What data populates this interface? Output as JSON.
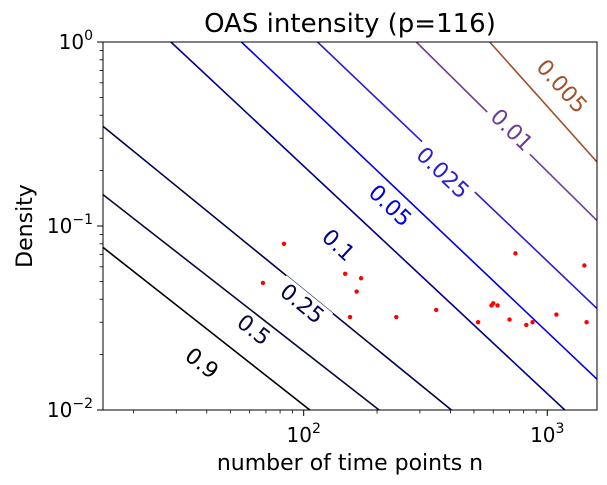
{
  "chart_data": {
    "type": "contour",
    "title": "OAS intensity (p=116)",
    "xlabel": "number of time points n",
    "ylabel": "Density",
    "xscale": "log",
    "yscale": "log",
    "xlim": [
      15,
      1600
    ],
    "ylim": [
      0.01,
      1
    ],
    "x_ticks": [
      {
        "value": 100,
        "base": "10",
        "exp": "2"
      },
      {
        "value": 1000,
        "base": "10",
        "exp": "3"
      }
    ],
    "y_ticks": [
      {
        "value": 0.01,
        "base": "10",
        "exp": "−2"
      },
      {
        "value": 0.1,
        "base": "10",
        "exp": "−1"
      },
      {
        "value": 1,
        "base": "10",
        "exp": "0"
      }
    ],
    "contours": [
      {
        "label": "0.9",
        "color": "#000000",
        "points": [
          [
            15,
            0.0765
          ],
          [
            106,
            0.01
          ]
        ],
        "label_at": [
          38,
          0.0178
        ]
      },
      {
        "label": "0.5",
        "color": "#0a0a3a",
        "points": [
          [
            15,
            0.148
          ],
          [
            204,
            0.01
          ]
        ],
        "label_at": [
          62,
          0.027
        ]
      },
      {
        "label": "0.25",
        "color": "#00004a",
        "points": [
          [
            15,
            0.348
          ],
          [
            404,
            0.01
          ]
        ],
        "label_at": [
          98,
          0.0375
        ]
      },
      {
        "label": "0.1",
        "color": "#00008b",
        "points": [
          [
            28.5,
            1.0
          ],
          [
            1180,
            0.01
          ]
        ],
        "label_at": [
          138,
          0.078
        ]
      },
      {
        "label": "0.05",
        "color": "#0000e6",
        "points": [
          [
            55.5,
            1.0
          ],
          [
            1600,
            0.0147
          ]
        ],
        "label_at": [
          225,
          0.128
        ]
      },
      {
        "label": "0.025",
        "color": "#2c1fd0",
        "points": [
          [
            114,
            1.0
          ],
          [
            1600,
            0.0356
          ]
        ],
        "label_at": [
          370,
          0.193
        ]
      },
      {
        "label": "0.01",
        "color": "#6a3d96",
        "points": [
          [
            290,
            1.0
          ],
          [
            1600,
            0.107
          ]
        ],
        "label_at": [
          710,
          0.33
        ]
      },
      {
        "label": "0.005",
        "color": "#a0522d",
        "points": [
          [
            580,
            1.0
          ],
          [
            1600,
            0.223
          ]
        ],
        "label_at": [
          1140,
          0.57
        ]
      }
    ],
    "scatter": {
      "color": "#ff0000",
      "points": [
        [
          68,
          0.049
        ],
        [
          83,
          0.08
        ],
        [
          148,
          0.055
        ],
        [
          155,
          0.032
        ],
        [
          165,
          0.044
        ],
        [
          172,
          0.052
        ],
        [
          240,
          0.032
        ],
        [
          350,
          0.035
        ],
        [
          520,
          0.03
        ],
        [
          590,
          0.037
        ],
        [
          600,
          0.038
        ],
        [
          625,
          0.037
        ],
        [
          700,
          0.031
        ],
        [
          740,
          0.071
        ],
        [
          820,
          0.029
        ],
        [
          870,
          0.03
        ],
        [
          1090,
          0.033
        ],
        [
          1420,
          0.061
        ],
        [
          1450,
          0.03
        ]
      ]
    }
  }
}
